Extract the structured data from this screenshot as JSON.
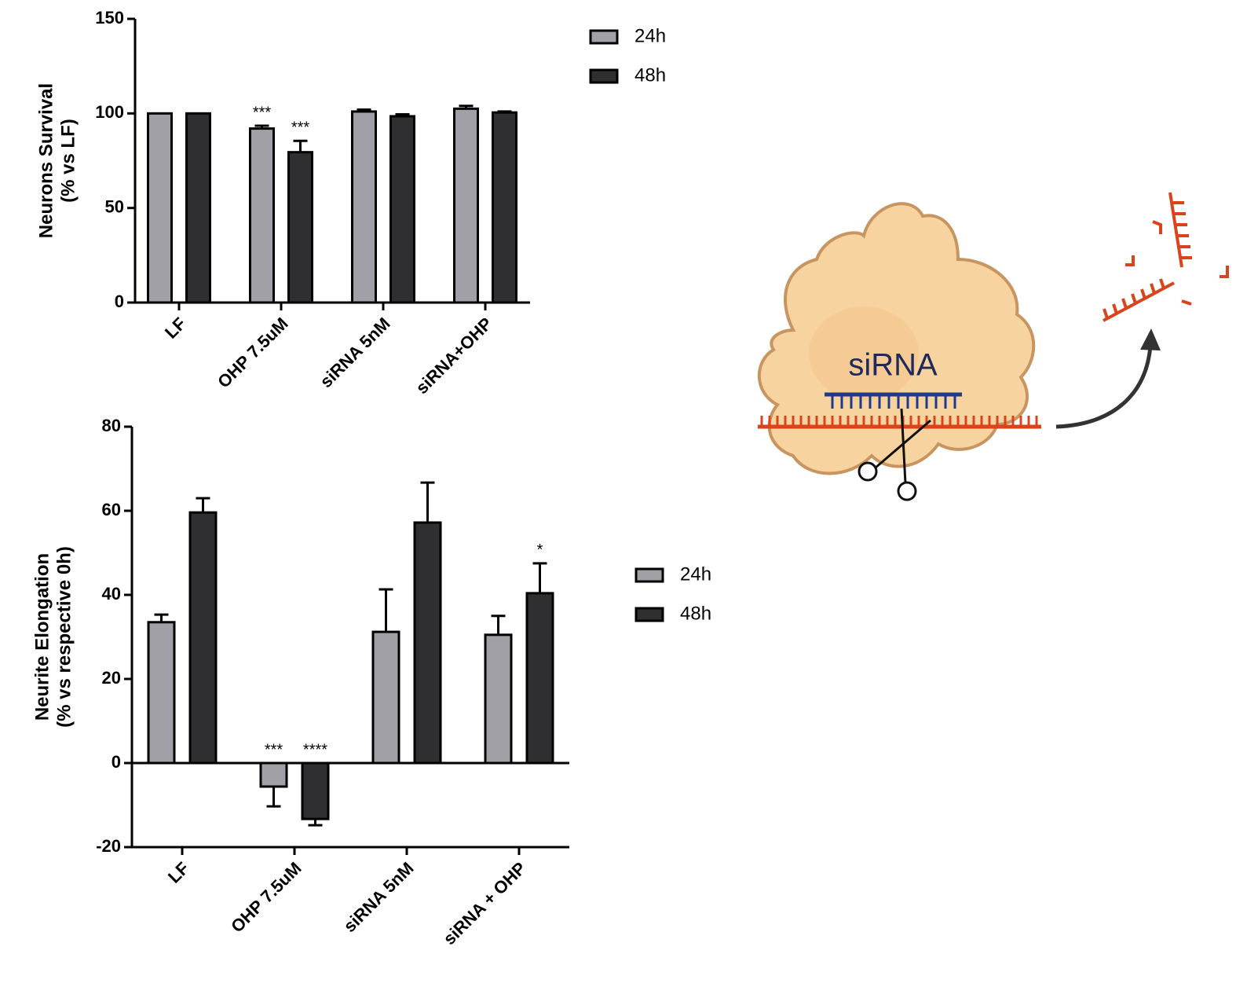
{
  "chart_data": [
    {
      "type": "bar",
      "ylabel": [
        "Neurons Survival",
        "(%  vs LF)"
      ],
      "categories": [
        "LF",
        "OHP 7.5uM",
        "siRNA 5nM",
        "siRNA+OHP"
      ],
      "series": [
        {
          "name": "24h",
          "color": "#a0a0a6",
          "values": [
            100,
            92,
            101,
            102.5
          ],
          "errors": [
            0,
            1.5,
            1,
            1.5
          ],
          "annotations": [
            null,
            "***",
            null,
            null
          ]
        },
        {
          "name": "48h",
          "color": "#2f2f31",
          "values": [
            100,
            79.5,
            98.5,
            100.5
          ],
          "errors": [
            0,
            6,
            1,
            0.5
          ],
          "annotations": [
            null,
            "***",
            null,
            null
          ]
        }
      ],
      "ylim": [
        0,
        150
      ],
      "yticks": [
        0,
        50,
        100,
        150
      ],
      "legend": "right"
    },
    {
      "type": "bar",
      "ylabel": [
        "Neurite Elongation",
        "(%  vs respective 0h)"
      ],
      "categories": [
        "LF",
        "OHP 7.5uM",
        "siRNA 5nM",
        "siRNA + OHP"
      ],
      "series": [
        {
          "name": "24h",
          "color": "#a0a0a6",
          "values": [
            33.5,
            -5.6,
            31.2,
            30.5
          ],
          "errors": [
            1.8,
            4.7,
            10.1,
            4.5
          ],
          "annotations": [
            null,
            "***",
            null,
            null
          ]
        },
        {
          "name": "48h",
          "color": "#2f2f31",
          "values": [
            59.6,
            -13.3,
            57.2,
            40.4
          ],
          "errors": [
            3.4,
            1.5,
            9.5,
            7.1
          ],
          "annotations": [
            null,
            "****",
            null,
            "*"
          ]
        }
      ],
      "ylim": [
        -20,
        80
      ],
      "yticks": [
        -20,
        0,
        20,
        40,
        60,
        80
      ],
      "legend": "right"
    }
  ],
  "illustration": {
    "label": "siRNA"
  }
}
